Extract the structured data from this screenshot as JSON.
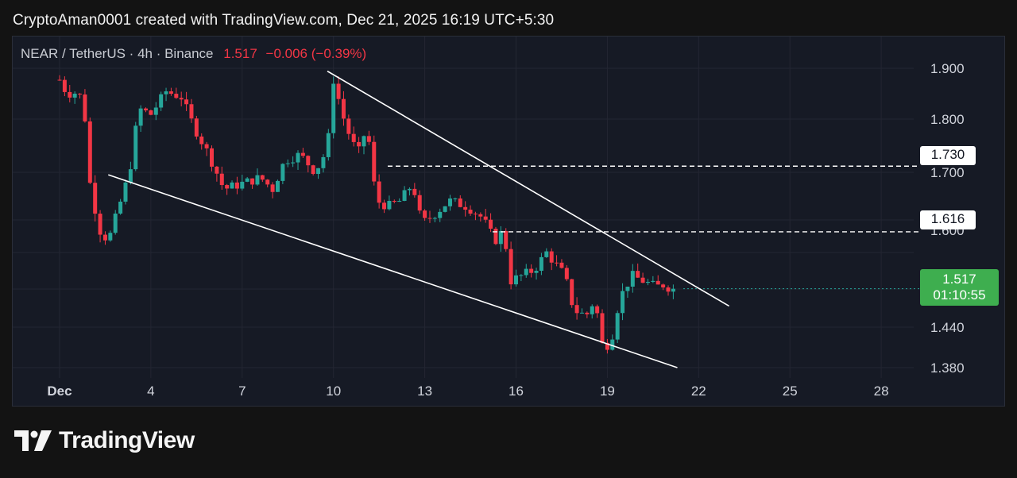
{
  "header": {
    "attribution": "CryptoAman0001 created with TradingView.com, Dec 21, 2025 16:19 UTC+5:30"
  },
  "symbol": {
    "pair": "NEAR / TetherUS · 4h · Binance",
    "last": "1.517",
    "change": "−0.006 (−0.39%)"
  },
  "colors": {
    "up": "#26a69a",
    "down": "#f23645",
    "background": "#161a25",
    "grid": "#232632",
    "accent": "#3eae4f"
  },
  "price_tags": {
    "resistance_1": "1.730",
    "resistance_2": "1.616",
    "current_price": "1.517",
    "countdown": "01:10:55"
  },
  "chart_data": {
    "type": "candlestick",
    "y_axis_ticks": [
      "1.900",
      "1.800",
      "1.700",
      "1.440",
      "1.380"
    ],
    "y_axis_hidden_tick": "1.600",
    "x_axis_ticks": [
      "Dec",
      "4",
      "7",
      "10",
      "13",
      "16",
      "19",
      "22",
      "25",
      "28"
    ],
    "ylim": [
      1.36,
      1.95
    ],
    "xlim": [
      "Nov 30",
      "Dec 30"
    ],
    "horizontal_levels": [
      1.73,
      1.616
    ],
    "trendlines": [
      {
        "name": "upper",
        "from": {
          "date": "Dec 9.8",
          "price": 1.895
        },
        "to": {
          "date": "Dec 23.0",
          "price": 1.487
        }
      },
      {
        "name": "lower",
        "from": {
          "date": "Dec 2.6",
          "price": 1.715
        },
        "to": {
          "date": "Dec 21.3",
          "price": 1.38
        }
      }
    ],
    "close_path": [
      [
        "Dec 1.0",
        1.88
      ],
      [
        "Dec 1.2",
        1.86
      ],
      [
        "Dec 1.4",
        1.855
      ],
      [
        "Dec 1.6",
        1.86
      ],
      [
        "Dec 1.8",
        1.835
      ],
      [
        "Dec 2.0",
        1.7
      ],
      [
        "Dec 2.3",
        1.62
      ],
      [
        "Dec 2.6",
        1.6
      ],
      [
        "Dec 2.9",
        1.65
      ],
      [
        "Dec 3.3",
        1.72
      ],
      [
        "Dec 3.6",
        1.83
      ],
      [
        "Dec 4.0",
        1.82
      ],
      [
        "Dec 4.5",
        1.86
      ],
      [
        "Dec 5.0",
        1.85
      ],
      [
        "Dec 5.4",
        1.8
      ],
      [
        "Dec 5.9",
        1.75
      ],
      [
        "Dec 6.4",
        1.69
      ],
      [
        "Dec 7.0",
        1.7
      ],
      [
        "Dec 7.6",
        1.71
      ],
      [
        "Dec 8.0",
        1.69
      ],
      [
        "Dec 8.4",
        1.74
      ],
      [
        "Dec 8.9",
        1.75
      ],
      [
        "Dec 9.4",
        1.72
      ],
      [
        "Dec 9.8",
        1.76
      ],
      [
        "Dec 10.0",
        1.88
      ],
      [
        "Dec 10.4",
        1.8
      ],
      [
        "Dec 10.8",
        1.75
      ],
      [
        "Dec 11.1",
        1.8
      ],
      [
        "Dec 11.4",
        1.67
      ],
      [
        "Dec 11.8",
        1.66
      ],
      [
        "Dec 12.2",
        1.67
      ],
      [
        "Dec 12.6",
        1.7
      ],
      [
        "Dec 12.9",
        1.63
      ],
      [
        "Dec 13.4",
        1.65
      ],
      [
        "Dec 13.8",
        1.67
      ],
      [
        "Dec 14.4",
        1.66
      ],
      [
        "Dec 14.9",
        1.64
      ],
      [
        "Dec 15.3",
        1.6
      ],
      [
        "Dec 15.6",
        1.62
      ],
      [
        "Dec 15.8",
        1.53
      ],
      [
        "Dec 16.2",
        1.54
      ],
      [
        "Dec 16.6",
        1.55
      ],
      [
        "Dec 17.0",
        1.58
      ],
      [
        "Dec 17.3",
        1.56
      ],
      [
        "Dec 17.6",
        1.54
      ],
      [
        "Dec 17.9",
        1.48
      ],
      [
        "Dec 18.3",
        1.47
      ],
      [
        "Dec 18.6",
        1.5
      ],
      [
        "Dec 18.8",
        1.42
      ],
      [
        "Dec 19.1",
        1.42
      ],
      [
        "Dec 19.4",
        1.5
      ],
      [
        "Dec 19.8",
        1.54
      ],
      [
        "Dec 20.2",
        1.53
      ],
      [
        "Dec 20.6",
        1.52
      ],
      [
        "Dec 20.9",
        1.525
      ],
      [
        "Dec 21.2",
        1.51
      ],
      [
        "Dec 21.3",
        1.517
      ]
    ],
    "last_price": 1.517
  },
  "footer": {
    "brand": "TradingView"
  }
}
